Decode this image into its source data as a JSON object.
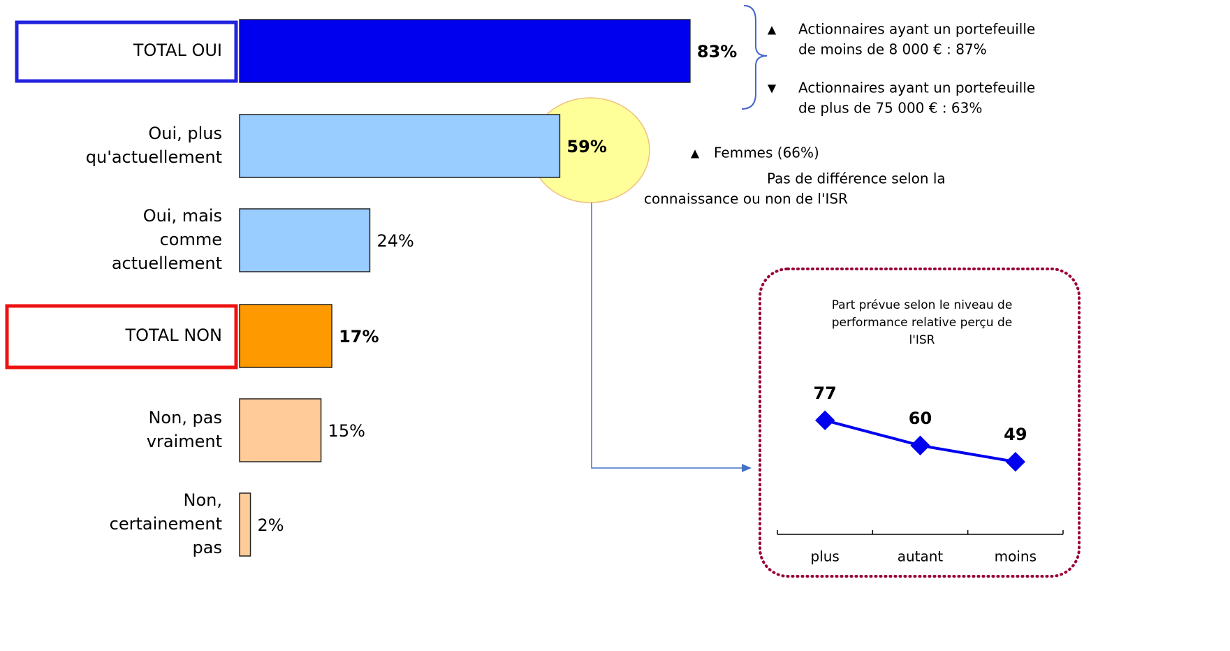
{
  "chart_data": [
    {
      "type": "hbar",
      "categories": [
        [
          "TOTAL OUI"
        ],
        [
          "Oui, plus",
          "qu'actuellement"
        ],
        [
          "Oui, mais",
          "comme",
          "actuellement"
        ],
        [
          "TOTAL NON"
        ],
        [
          "Non, pas",
          "vraiment"
        ],
        [
          "Non,",
          "certainement",
          "pas"
        ]
      ],
      "values": [
        83,
        59,
        24,
        17,
        15,
        2
      ],
      "value_labels": [
        "83%",
        "59%",
        "24%",
        "17%",
        "15%",
        "2%"
      ],
      "colors": [
        "#0000ee",
        "#99ccff",
        "#99ccff",
        "#ff9900",
        "#ffcc99",
        "#ffcc99"
      ],
      "xlim": [
        0,
        100
      ],
      "annotations": [
        {
          "symbol": "▲",
          "lines": [
            "Actionnaires ayant un portefeuille",
            "de moins de 8 000 € : 87%"
          ]
        },
        {
          "symbol": "▼",
          "lines": [
            "Actionnaires ayant un portefeuille",
            "de plus de 75 000 € : 63%"
          ]
        },
        {
          "symbol": "▲",
          "lines": [
            "Femmes (66%)"
          ]
        },
        {
          "lines": [
            "Pas de différence selon la",
            "connaissance ou non de l'ISR"
          ]
        }
      ]
    },
    {
      "type": "line",
      "title": [
        "Part prévue selon le niveau de",
        "performance relative perçu de",
        "l'ISR"
      ],
      "categories": [
        "plus",
        "autant",
        "moins"
      ],
      "values": [
        77,
        60,
        49
      ],
      "color": "#0000ee",
      "ylim": [
        0,
        100
      ]
    }
  ]
}
